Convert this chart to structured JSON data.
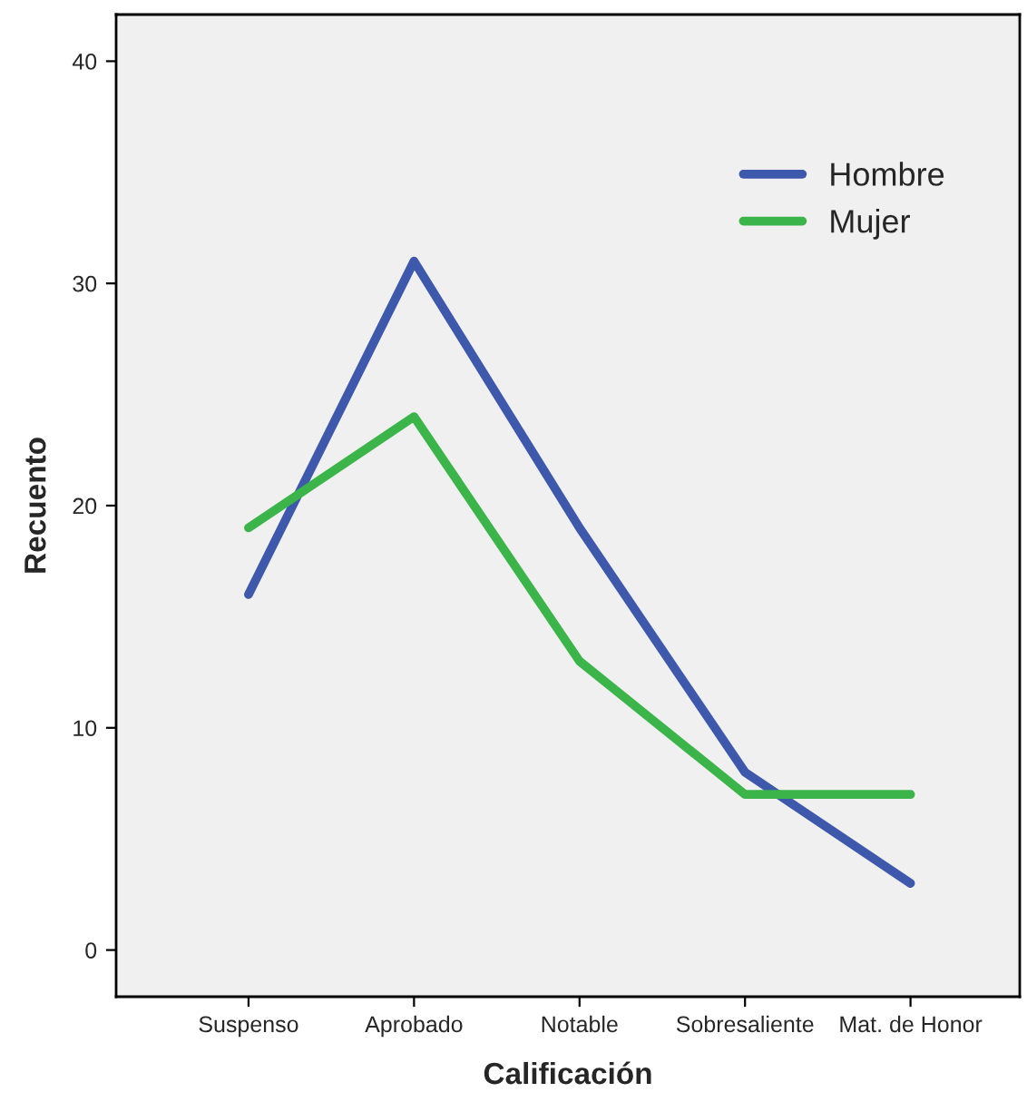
{
  "chart_data": {
    "type": "line",
    "xlabel": "Calificación",
    "ylabel": "Recuento",
    "categories": [
      "Suspenso",
      "Aprobado",
      "Notable",
      "Sobresaliente",
      "Mat. de Honor"
    ],
    "series": [
      {
        "name": "Hombre",
        "color": "#3e58ac",
        "values": [
          16,
          31,
          19,
          8,
          3
        ]
      },
      {
        "name": "Mujer",
        "color": "#3bb44a",
        "values": [
          19,
          24,
          13,
          7,
          7
        ]
      }
    ],
    "ylim": [
      -2.1,
      42.1
    ],
    "yticks": [
      0,
      10,
      20,
      30,
      40
    ],
    "grid": false,
    "legend": "top right",
    "line_style": "solid"
  }
}
